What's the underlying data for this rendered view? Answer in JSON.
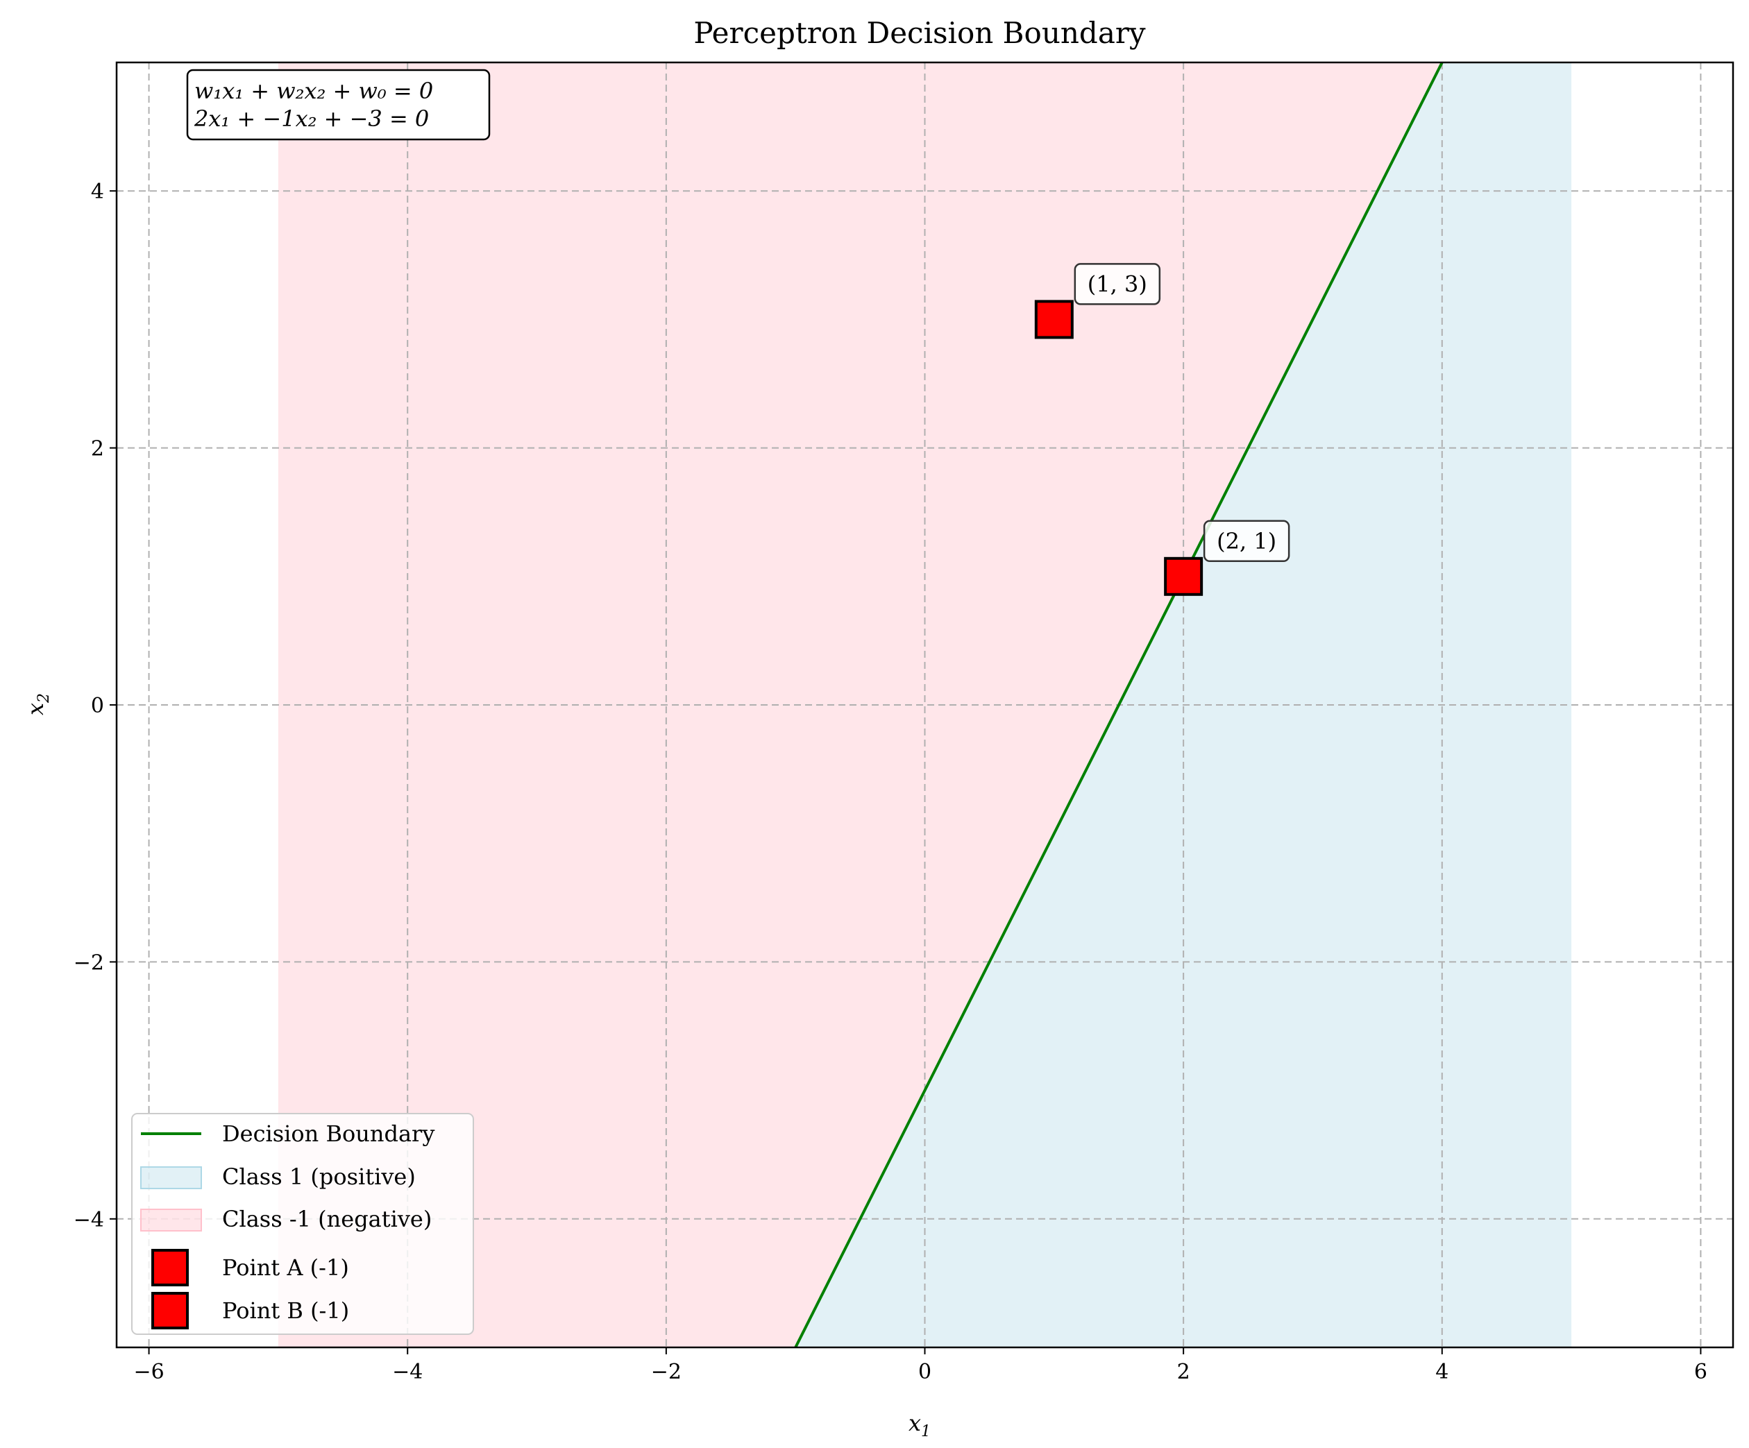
{
  "chart_data": {
    "type": "scatter",
    "title": "Perceptron Decision Boundary",
    "xlabel": "x",
    "xlabel_sub": "1",
    "ylabel": "x",
    "ylabel_sub": "2",
    "xlim": [
      -6.25,
      6.25
    ],
    "ylim": [
      -5,
      5
    ],
    "xticks": [
      -6,
      -4,
      -2,
      0,
      2,
      4,
      6
    ],
    "yticks": [
      -4,
      -2,
      0,
      2,
      4
    ],
    "xtick_labels": [
      "−6",
      "−4",
      "−2",
      "0",
      "2",
      "4",
      "6"
    ],
    "ytick_labels": [
      "−4",
      "−2",
      "0",
      "2",
      "4"
    ],
    "grid": true,
    "legend_position": "lower-left",
    "weights": {
      "w1": 2,
      "w2": -1,
      "w0": -3
    },
    "boundary": {
      "name": "Decision Boundary",
      "color": "#008000",
      "x": [
        -1,
        4
      ],
      "y": [
        -5,
        5
      ]
    },
    "regions": [
      {
        "name": "Class 1 (positive)",
        "color": "#add8e6",
        "opacity": 0.35,
        "polygon_x": [
          -1,
          5,
          5,
          4
        ],
        "polygon_y": [
          -5,
          -5,
          5,
          5
        ]
      },
      {
        "name": "Class -1 (negative)",
        "color": "#ffc0cb",
        "opacity": 0.4,
        "polygon_x": [
          -5,
          -1,
          4,
          -5
        ],
        "polygon_y": [
          -5,
          -5,
          5,
          5
        ]
      }
    ],
    "series": [
      {
        "name": "Point A (-1)",
        "marker": "square",
        "color": "#ff0000",
        "x": [
          1
        ],
        "y": [
          3
        ],
        "annotation": "(1, 3)"
      },
      {
        "name": "Point B (-1)",
        "marker": "square",
        "color": "#ff0000",
        "x": [
          2
        ],
        "y": [
          1
        ],
        "annotation": "(2, 1)"
      }
    ],
    "equation_box": {
      "line1": "w₁x₁ + w₂x₂ + w₀ = 0",
      "line2": "2x₁ + −1x₂ + −3 = 0"
    }
  }
}
